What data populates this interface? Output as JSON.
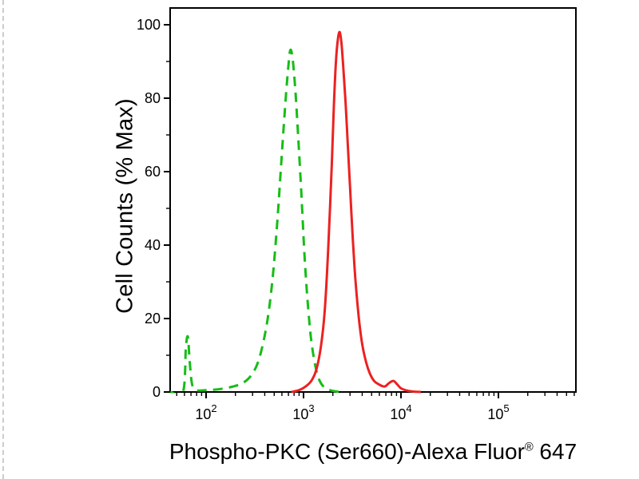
{
  "figure": {
    "description": "Flow cytometry overlay histogram with one green dashed control peak and one red solid sample peak"
  },
  "chart_data": {
    "type": "line",
    "subtype": "flow-cytometry-histogram",
    "title": "",
    "xlabel": "Phospho-PKC (Ser660)-Alexa Fluor® 647",
    "xlabel_parts": [
      "Phospho-PKC (Ser660)-Alexa Fluor",
      "®",
      " 647"
    ],
    "ylabel": "Cell Counts (% Max)",
    "xscale": "log",
    "xlim": [
      43,
      620000
    ],
    "ylim": [
      0,
      100
    ],
    "xticks": [
      100,
      1000,
      10000,
      100000
    ],
    "yticks": [
      0,
      20,
      40,
      60,
      80,
      100
    ],
    "grid": false,
    "legend": "none",
    "colors": {
      "axis": "#000000",
      "background": "#ffffff"
    },
    "series": [
      {
        "name": "control-green-dashed",
        "color": "#16bd16",
        "line_style": "dashed",
        "peak": {
          "x": 730,
          "y": 93
        },
        "points": [
          [
            43,
            0
          ],
          [
            58,
            0
          ],
          [
            62,
            12
          ],
          [
            65,
            15
          ],
          [
            68,
            8
          ],
          [
            72,
            2
          ],
          [
            80,
            0.5
          ],
          [
            100,
            0.5
          ],
          [
            140,
            0.8
          ],
          [
            190,
            1.5
          ],
          [
            240,
            2.5
          ],
          [
            290,
            4.5
          ],
          [
            340,
            8
          ],
          [
            390,
            14
          ],
          [
            440,
            22
          ],
          [
            490,
            33
          ],
          [
            540,
            47
          ],
          [
            590,
            62
          ],
          [
            640,
            76
          ],
          [
            690,
            87
          ],
          [
            730,
            93
          ],
          [
            770,
            91
          ],
          [
            820,
            83
          ],
          [
            880,
            70
          ],
          [
            950,
            54
          ],
          [
            1020,
            38
          ],
          [
            1100,
            25
          ],
          [
            1200,
            14
          ],
          [
            1350,
            6
          ],
          [
            1500,
            2.5
          ],
          [
            1700,
            1
          ],
          [
            2000,
            0.3
          ],
          [
            2400,
            0
          ]
        ]
      },
      {
        "name": "sample-red-solid",
        "color": "#ec2121",
        "line_style": "solid",
        "peak": {
          "x": 2350,
          "y": 98
        },
        "points": [
          [
            750,
            0
          ],
          [
            900,
            0.5
          ],
          [
            1050,
            1.5
          ],
          [
            1200,
            3
          ],
          [
            1350,
            6
          ],
          [
            1500,
            12
          ],
          [
            1650,
            22
          ],
          [
            1800,
            40
          ],
          [
            1950,
            62
          ],
          [
            2050,
            78
          ],
          [
            2150,
            90
          ],
          [
            2250,
            96
          ],
          [
            2350,
            98
          ],
          [
            2450,
            95
          ],
          [
            2550,
            89
          ],
          [
            2700,
            79
          ],
          [
            2850,
            67
          ],
          [
            3000,
            56
          ],
          [
            3200,
            42
          ],
          [
            3400,
            31
          ],
          [
            3700,
            20
          ],
          [
            4000,
            13
          ],
          [
            4400,
            8
          ],
          [
            4800,
            5
          ],
          [
            5300,
            3
          ],
          [
            6000,
            2
          ],
          [
            6800,
            1.5
          ],
          [
            7600,
            2.5
          ],
          [
            8400,
            3
          ],
          [
            9200,
            2
          ],
          [
            10000,
            1
          ],
          [
            11500,
            0.4
          ],
          [
            13500,
            0.1
          ],
          [
            16000,
            0
          ]
        ]
      }
    ]
  }
}
